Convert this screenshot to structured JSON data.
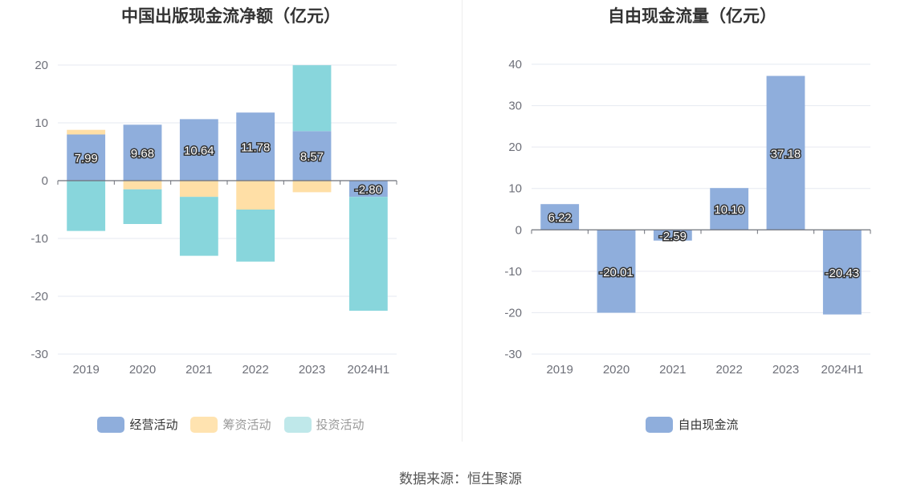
{
  "colors": {
    "operating": "#8faedc",
    "financing": "#ffdfa6",
    "investing": "#88d6dc",
    "grid": "#e6e9f0",
    "axis": "#6e7079"
  },
  "source_text": "数据来源：恒生聚源",
  "chart_data": [
    {
      "type": "bar",
      "stacked": true,
      "title": "中国出版现金流净额（亿元）",
      "categories": [
        "2019",
        "2020",
        "2021",
        "2022",
        "2023",
        "2024H1"
      ],
      "ylim": [
        -30,
        20
      ],
      "yticks": [
        20,
        10,
        0,
        -10,
        -20,
        -30
      ],
      "grid": true,
      "legend_position": "bottom",
      "series": [
        {
          "name": "经营活动",
          "values": [
            7.99,
            9.68,
            10.64,
            11.78,
            8.57,
            -2.8
          ],
          "labels": [
            "7.99",
            "9.68",
            "10.64",
            "11.78",
            "8.57",
            "-2.80"
          ]
        },
        {
          "name": "筹资活动",
          "values": [
            0.8,
            -1.5,
            -2.8,
            -5.0,
            -2.0,
            0
          ]
        },
        {
          "name": "投资活动",
          "values": [
            -8.7,
            -6.0,
            -10.2,
            -9.0,
            11.4,
            -19.7
          ]
        }
      ]
    },
    {
      "type": "bar",
      "title": "自由现金流量（亿元）",
      "categories": [
        "2019",
        "2020",
        "2021",
        "2022",
        "2023",
        "2024H1"
      ],
      "ylim": [
        -30,
        40
      ],
      "yticks": [
        40,
        30,
        20,
        10,
        0,
        -10,
        -20,
        -30
      ],
      "grid": true,
      "legend_position": "bottom",
      "series": [
        {
          "name": "自由现金流",
          "values": [
            6.22,
            -20.01,
            -2.59,
            10.1,
            37.18,
            -20.43
          ],
          "labels": [
            "6.22",
            "-20.01",
            "-2.59",
            "10.10",
            "37.18",
            "-20.43"
          ]
        }
      ]
    }
  ]
}
